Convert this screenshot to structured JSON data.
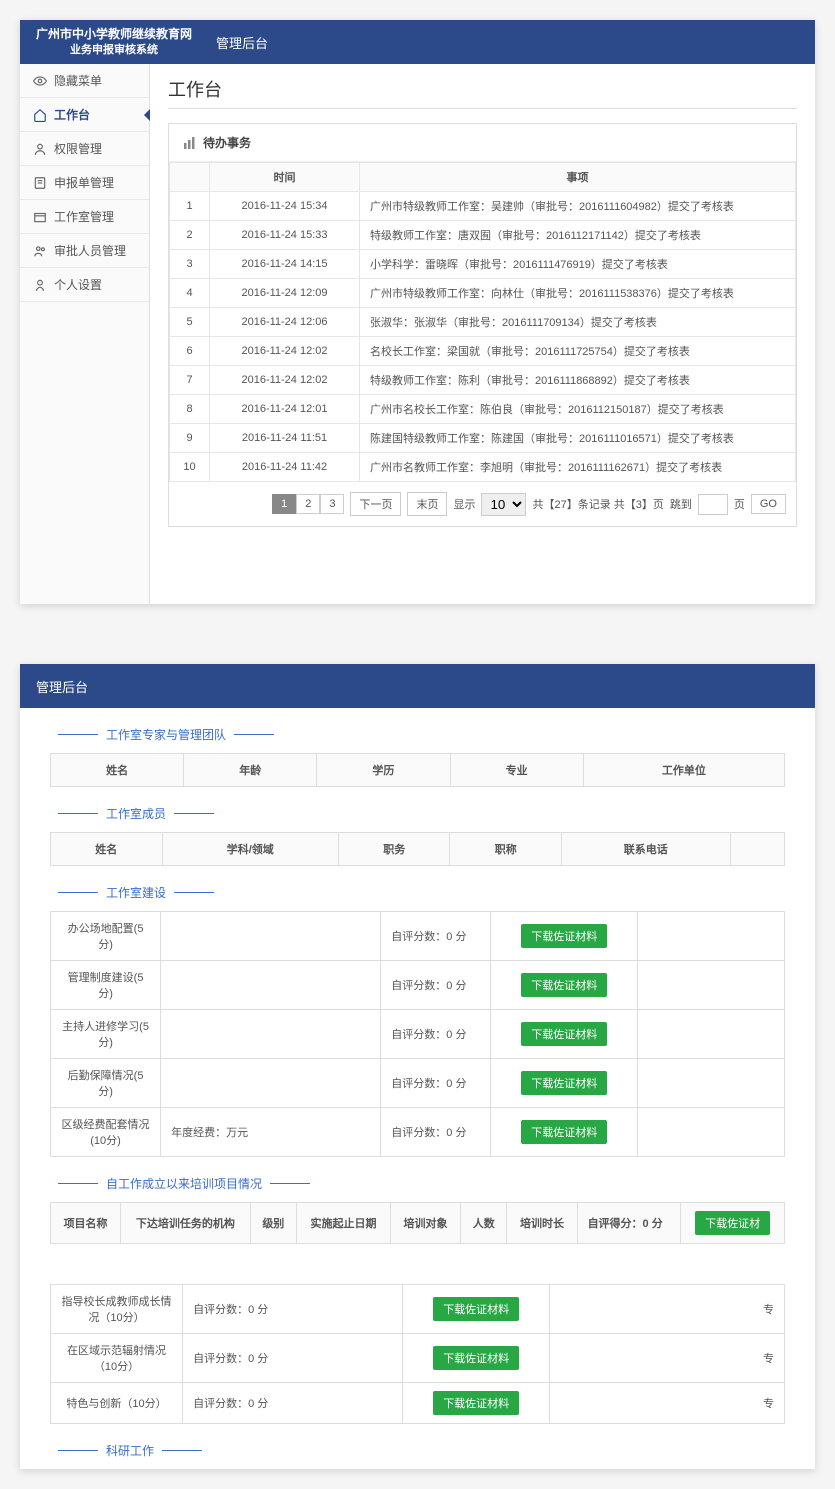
{
  "colors": {
    "brand": "#2c4a8a",
    "accent": "#3a6cc8",
    "green": "#28a745"
  },
  "header": {
    "brand_line1": "广州市中小学教师继续教育网",
    "brand_line2": "业务申报审核系统",
    "title": "管理后台"
  },
  "sidebar": {
    "items": [
      {
        "label": "隐藏菜单",
        "icon": "eye"
      },
      {
        "label": "工作台",
        "icon": "home",
        "active": true
      },
      {
        "label": "权限管理",
        "icon": "user"
      },
      {
        "label": "申报单管理",
        "icon": "form"
      },
      {
        "label": "工作室管理",
        "icon": "room"
      },
      {
        "label": "审批人员管理",
        "icon": "people"
      },
      {
        "label": "个人设置",
        "icon": "person"
      }
    ]
  },
  "page": {
    "title": "工作台"
  },
  "tasks": {
    "title": "待办事务",
    "columns": {
      "time": "时间",
      "item": "事项"
    },
    "rows": [
      {
        "n": "1",
        "time": "2016-11-24 15:34",
        "item": "广州市特级教师工作室：吴建帅（审批号：2016111604982）提交了考核表"
      },
      {
        "n": "2",
        "time": "2016-11-24 15:33",
        "item": "特级教师工作室：唐双囿（审批号：2016112171142）提交了考核表"
      },
      {
        "n": "3",
        "time": "2016-11-24 14:15",
        "item": "小学科学：雷晓晖（审批号：2016111476919）提交了考核表"
      },
      {
        "n": "4",
        "time": "2016-11-24 12:09",
        "item": "广州市特级教师工作室：向林仕（审批号：2016111538376）提交了考核表"
      },
      {
        "n": "5",
        "time": "2016-11-24 12:06",
        "item": "张淑华：张淑华（审批号：2016111709134）提交了考核表"
      },
      {
        "n": "6",
        "time": "2016-11-24 12:02",
        "item": "名校长工作室：梁国就（审批号：2016111725754）提交了考核表"
      },
      {
        "n": "7",
        "time": "2016-11-24 12:02",
        "item": "特级教师工作室：陈利（审批号：2016111868892）提交了考核表"
      },
      {
        "n": "8",
        "time": "2016-11-24 12:01",
        "item": "广州市名校长工作室：陈伯良（审批号：2016112150187）提交了考核表"
      },
      {
        "n": "9",
        "time": "2016-11-24 11:51",
        "item": "陈建国特级教师工作室：陈建国（审批号：2016111016571）提交了考核表"
      },
      {
        "n": "10",
        "time": "2016-11-24 11:42",
        "item": "广州市名教师工作室：李旭明（审批号：2016111162671）提交了考核表"
      }
    ],
    "pager": {
      "pages": [
        "1",
        "2",
        "3"
      ],
      "next": "下一页",
      "last": "末页",
      "show": "显示",
      "pagesize": "10",
      "summary1": "共【27】条记录 共【3】页",
      "jump": "跳到",
      "page_suffix": "页",
      "go": "GO"
    }
  },
  "panel2": {
    "header": "管理后台",
    "team": {
      "title": "工作室专家与管理团队",
      "cols": [
        "姓名",
        "年龄",
        "学历",
        "专业",
        "工作单位"
      ]
    },
    "members": {
      "title": "工作室成员",
      "cols": [
        "姓名",
        "学科/领域",
        "职务",
        "职称",
        "联系电话",
        ""
      ]
    },
    "build": {
      "title": "工作室建设",
      "score_label": "自评分数：",
      "score_val": "0 分",
      "btn": "下载佐证材料",
      "rows": [
        {
          "name": "办公场地配置(5分)",
          "extra": ""
        },
        {
          "name": "管理制度建设(5分)",
          "extra": ""
        },
        {
          "name": "主持人进修学习(5分)",
          "extra": ""
        },
        {
          "name": "后勤保障情况(5分)",
          "extra": ""
        },
        {
          "name": "区级经费配套情况(10分)",
          "extra": "年度经费：万元"
        }
      ]
    },
    "training": {
      "title": "自工作成立以来培训项目情况",
      "cols": [
        "项目名称",
        "下达培训任务的机构",
        "级别",
        "实施起止日期",
        "培训对象",
        "人数",
        "培训时长"
      ],
      "score_label": "自评得分：",
      "score_val": "0 分",
      "btn": "下载佐证材"
    },
    "effects": {
      "score_label": "自评分数：",
      "score_val": "0 分",
      "btn": "下载佐证材料",
      "tail": "专",
      "rows": [
        "指导校长成教师成长情况（10分）",
        "在区域示范辐射情况（10分）",
        "特色与创新（10分）"
      ]
    },
    "research": {
      "title": "科研工作"
    }
  }
}
